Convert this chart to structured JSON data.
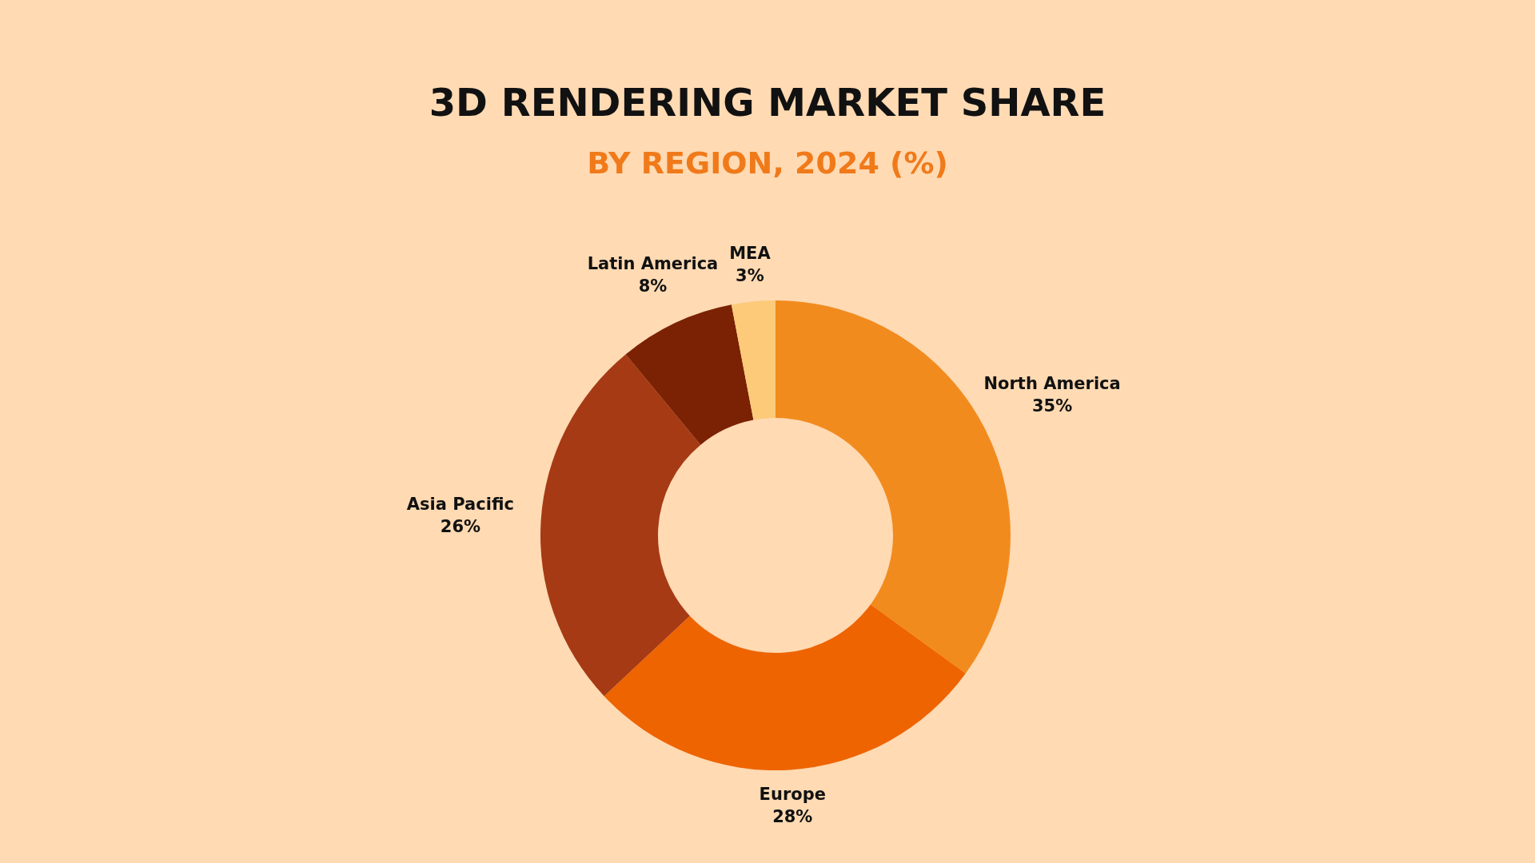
{
  "chart_data": {
    "type": "donut",
    "title": "3D RENDERING MARKET SHARE",
    "subtitle": "BY REGION, 2024 (%)",
    "categories": [
      "North America",
      "Europe",
      "Asia Pacific",
      "Latin America",
      "MEA"
    ],
    "values": [
      35,
      28,
      26,
      8,
      3
    ],
    "colors": [
      "#f28b1e",
      "#ee6400",
      "#a63a14",
      "#7a2203",
      "#fdca7a"
    ],
    "value_labels": [
      "35%",
      "28%",
      "26%",
      "8%",
      "3%"
    ]
  }
}
